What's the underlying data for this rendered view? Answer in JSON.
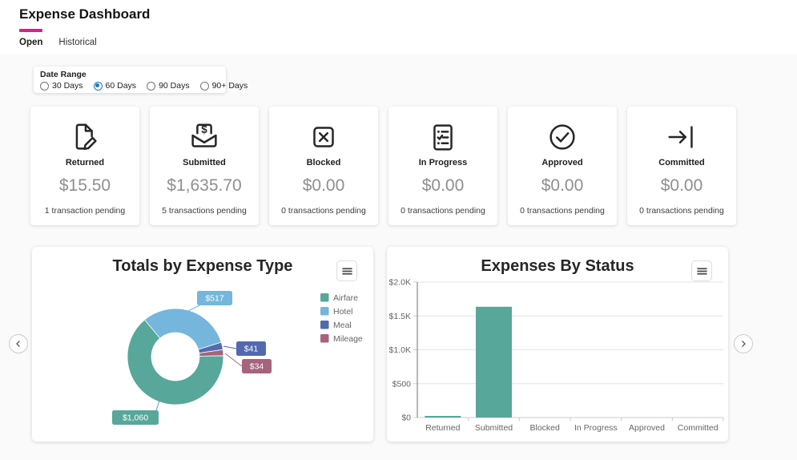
{
  "page": {
    "title": "Expense Dashboard"
  },
  "tabs": [
    {
      "label": "Open",
      "active": true
    },
    {
      "label": "Historical",
      "active": false
    }
  ],
  "date_range": {
    "label": "Date Range",
    "options": [
      {
        "label": "30 Days",
        "selected": false
      },
      {
        "label": "60 Days",
        "selected": true
      },
      {
        "label": "90 Days",
        "selected": false
      },
      {
        "label": "90+ Days",
        "selected": false
      }
    ]
  },
  "summary_cards": [
    {
      "label": "Returned",
      "amount": "$15.50",
      "caption": "1 transaction pending",
      "icon": "document-edit-icon"
    },
    {
      "label": "Submitted",
      "amount": "$1,635.70",
      "caption": "5 transactions pending",
      "icon": "envelope-dollar-icon"
    },
    {
      "label": "Blocked",
      "amount": "$0.00",
      "caption": "0 transactions pending",
      "icon": "x-square-icon"
    },
    {
      "label": "In Progress",
      "amount": "$0.00",
      "caption": "0 transactions pending",
      "icon": "checklist-icon"
    },
    {
      "label": "Approved",
      "amount": "$0.00",
      "caption": "0 transactions pending",
      "icon": "check-circle-icon"
    },
    {
      "label": "Committed",
      "amount": "$0.00",
      "caption": "0 transactions pending",
      "icon": "arrow-to-bar-icon"
    }
  ],
  "colors": {
    "accent_pink": "#ed148f",
    "radio_selected": "#1976d2",
    "teal": "#57a79b",
    "light_blue": "#74b6dc",
    "indigo": "#5169af",
    "rose": "#a5647b",
    "gridline": "#e3e3e3",
    "axis_line": "#8a8a8a",
    "tick_text": "#666666"
  },
  "chart_data": [
    {
      "type": "pie",
      "title": "Totals by Expense Type",
      "labels": [
        "Airfare",
        "Hotel",
        "Meal",
        "Mileage"
      ],
      "values": [
        1060,
        517,
        41,
        34
      ],
      "data_labels": [
        "$1,060",
        "$517",
        "$41",
        "$34"
      ],
      "colors": [
        "#57a79b",
        "#74b6dc",
        "#5169af",
        "#a5647b"
      ],
      "legend_position": "right",
      "donut": true,
      "start_angle": -40
    },
    {
      "type": "bar",
      "title": "Expenses By Status",
      "categories": [
        "Returned",
        "Submitted",
        "Blocked",
        "In Progress",
        "Approved",
        "Committed"
      ],
      "values": [
        15.5,
        1635.7,
        0,
        0,
        0,
        0
      ],
      "ytick_labels": [
        "$0",
        "$500",
        "$1.0K",
        "$1.5K",
        "$2.0K"
      ],
      "ytick_values": [
        0,
        500,
        1000,
        1500,
        2000
      ],
      "ylim": [
        0,
        2000
      ],
      "grid": true,
      "bar_color": "#57a79b"
    }
  ],
  "menu_button": {
    "icon": "hamburger-icon"
  },
  "carousel": {
    "prev_icon": "chevron-left-icon",
    "next_icon": "chevron-right-icon"
  }
}
